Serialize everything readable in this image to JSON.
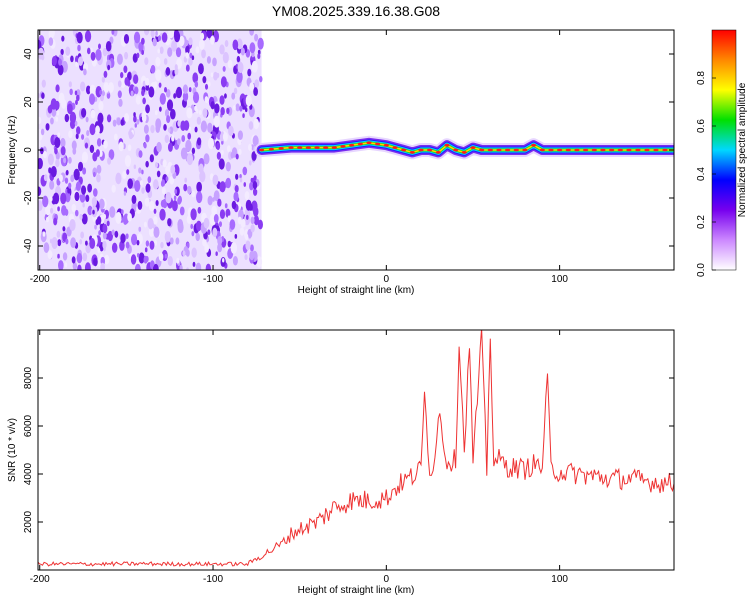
{
  "figure": {
    "title": "YM08.2025.339.16.38.G08"
  },
  "chart_data": [
    {
      "type": "heatmap",
      "title": "YM08.2025.339.16.38.G08",
      "xlabel": "Height of straight line (km)",
      "ylabel": "Frequency (Hz)",
      "xlim": [
        -201,
        166
      ],
      "ylim": [
        -50,
        50
      ],
      "x_ticks": [
        -200,
        -100,
        0,
        100
      ],
      "y_ticks": [
        -40,
        -20,
        0,
        20,
        40
      ],
      "noise_region_x": [
        -201,
        -72
      ],
      "signal_band": {
        "x": [
          -72,
          -55,
          -40,
          -30,
          -20,
          -10,
          0,
          5,
          10,
          15,
          20,
          25,
          30,
          35,
          40,
          45,
          50,
          55,
          60,
          70,
          80,
          85,
          90,
          100,
          120,
          140,
          166
        ],
        "freq": [
          0,
          1,
          1,
          1,
          2,
          3,
          2,
          1,
          0,
          -1,
          0,
          0,
          -1,
          2,
          0,
          -1,
          1,
          0,
          0,
          0,
          0,
          2,
          0,
          0,
          0,
          0,
          0
        ]
      },
      "colorbar": {
        "label": "Normalized spectral amplitude",
        "range": [
          0.0,
          1.0
        ],
        "ticks": [
          0.0,
          0.2,
          0.4,
          0.6,
          0.8
        ],
        "tick_labels": [
          "0.0",
          "0.2",
          "0.4",
          "0.6",
          "0.8"
        ],
        "colormap": [
          "#ffffff",
          "#cc88ff",
          "#7700ee",
          "#0000ff",
          "#00d8ff",
          "#00e000",
          "#ffff00",
          "#ff8800",
          "#ff0000"
        ]
      },
      "grid": false
    },
    {
      "type": "line",
      "xlabel": "Height of straight line (km)",
      "ylabel": "SNR (10 * v/v)",
      "xlim": [
        -201,
        166
      ],
      "ylim": [
        0,
        10000
      ],
      "x_ticks": [
        -200,
        -100,
        0,
        100
      ],
      "y_ticks": [
        2000,
        4000,
        6000,
        8000
      ],
      "series": [
        {
          "color": "#ee3333",
          "x": [
            -201,
            -180,
            -160,
            -140,
            -120,
            -100,
            -80,
            -60,
            -55,
            -50,
            -40,
            -30,
            -20,
            -10,
            0,
            5,
            10,
            15,
            20,
            22,
            25,
            28,
            30,
            35,
            40,
            42,
            45,
            48,
            50,
            55,
            58,
            60,
            62,
            65,
            70,
            80,
            85,
            90,
            93,
            95,
            100,
            110,
            120,
            130,
            140,
            150,
            166
          ],
          "y": [
            250,
            250,
            250,
            260,
            250,
            250,
            250,
            1100,
            1500,
            1700,
            2000,
            2600,
            2900,
            2900,
            3000,
            3400,
            3700,
            3900,
            4200,
            7300,
            4200,
            4600,
            6700,
            4500,
            4600,
            9600,
            5000,
            9500,
            4500,
            9700,
            4200,
            9900,
            4500,
            4600,
            4300,
            4200,
            4400,
            4300,
            8000,
            4200,
            4100,
            4000,
            3900,
            3800,
            3800,
            3700,
            3600
          ]
        }
      ],
      "grid": false
    }
  ]
}
